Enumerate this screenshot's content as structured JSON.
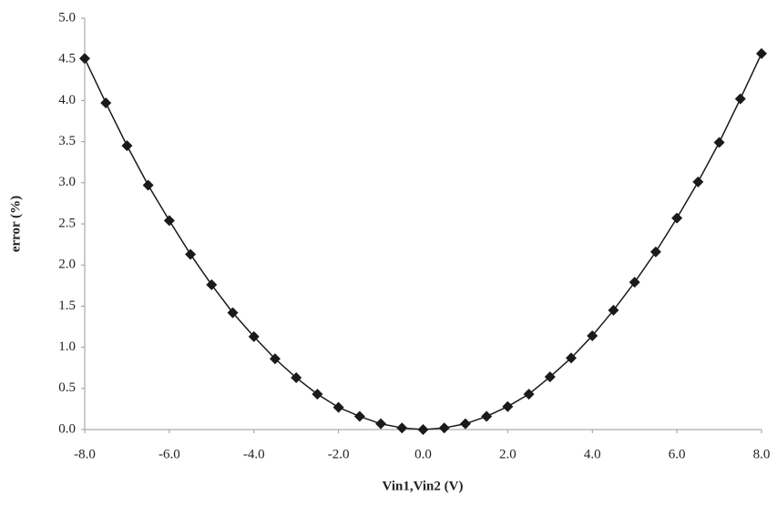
{
  "chart_data": {
    "type": "line",
    "x_label": "Vin1,Vin2 (V)",
    "y_label": "error (%)",
    "color": "#1a1a1a",
    "x": [
      -8,
      -7.5,
      -7,
      -6.5,
      -6,
      -5.5,
      -5,
      -4.5,
      -4,
      -3.5,
      -3,
      -2.5,
      -2,
      -1.5,
      -1,
      -0.5,
      0,
      0.5,
      1,
      1.5,
      2,
      2.5,
      3,
      3.5,
      4,
      4.5,
      5,
      5.5,
      6,
      6.5,
      7,
      7.5,
      8
    ],
    "values": [
      4.51,
      3.97,
      3.45,
      2.97,
      2.54,
      2.13,
      1.76,
      1.42,
      1.13,
      0.86,
      0.63,
      0.43,
      0.27,
      0.16,
      0.07,
      0.02,
      0.0,
      0.02,
      0.07,
      0.16,
      0.28,
      0.43,
      0.64,
      0.87,
      1.14,
      1.45,
      1.79,
      2.16,
      2.57,
      3.01,
      3.49,
      4.02,
      4.57
    ],
    "xlim": [
      -8,
      8
    ],
    "xticks": [
      {
        "value": -8,
        "label": "-8.0"
      },
      {
        "value": -6,
        "label": "-6.0"
      },
      {
        "value": -4,
        "label": "-4.0"
      },
      {
        "value": -2,
        "label": "-2.0"
      },
      {
        "value": 0,
        "label": "0.0"
      },
      {
        "value": 2,
        "label": "2.0"
      },
      {
        "value": 4,
        "label": "4.0"
      },
      {
        "value": 6,
        "label": "6.0"
      },
      {
        "value": 8,
        "label": "8.0"
      }
    ],
    "ylim": [
      0,
      5
    ],
    "yticks": [
      {
        "value": 0,
        "label": "0.0"
      },
      {
        "value": 0.5,
        "label": "0.5"
      },
      {
        "value": 1,
        "label": "1.0"
      },
      {
        "value": 1.5,
        "label": "1.5"
      },
      {
        "value": 2,
        "label": "2.0"
      },
      {
        "value": 2.5,
        "label": "2.5"
      },
      {
        "value": 3,
        "label": "3.0"
      },
      {
        "value": 3.5,
        "label": "3.5"
      },
      {
        "value": 4,
        "label": "4.0"
      },
      {
        "value": 4.5,
        "label": "4.5"
      },
      {
        "value": 5,
        "label": "5.0"
      }
    ],
    "grid": false
  }
}
